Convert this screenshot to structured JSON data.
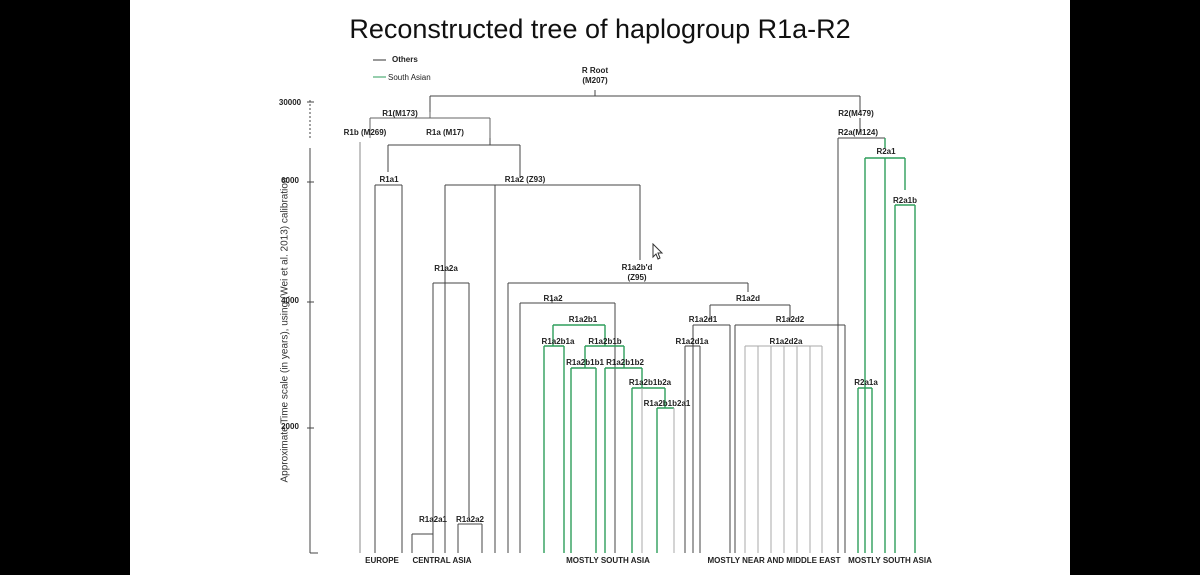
{
  "title": "Reconstructed tree of haplogroup R1a-R2",
  "legend": [
    {
      "label": "Others",
      "color": "#333333"
    },
    {
      "label": "South Asian",
      "color": "#2e9e5b"
    }
  ],
  "y_axis": {
    "label": "Approximate Time scale (in years), using (Wei et al. 2013) calibration",
    "ticks": [
      "30000",
      "6000",
      "4000",
      "2000"
    ]
  },
  "root": {
    "name": "R Root",
    "marker": "(M207)"
  },
  "nodes": {
    "r1": "R1(M173)",
    "r1b": "R1b (M269)",
    "r1a": "R1a (M17)",
    "r2": "R2(M479)",
    "r2a": "R2a(M124)",
    "r2a1": "R2a1",
    "r2a1b": "R2a1b",
    "r2a1a": "R2a1a",
    "r1a1": "R1a1",
    "r1a2": "R1a2 (Z93)",
    "r1a2a": "R1a2a",
    "r1a2a1": "R1a2a1",
    "r1a2a2": "R1a2a2",
    "r1a2bd": "R1a2b'd",
    "z95": "(Z95)",
    "r1a2_b": "R1a2",
    "r1a2d": "R1a2d",
    "r1a2b1": "R1a2b1",
    "r1a2b1a": "R1a2b1a",
    "r1a2b1b": "R1a2b1b",
    "r1a2b1b1": "R1a2b1b1",
    "r1a2b1b2": "R1a2b1b2",
    "r1a2b1b2a": "R1a2b1b2a",
    "r1a2b1b2a1": "R1a2b1b2a1",
    "r1a2d1": "R1a2d1",
    "r1a2d1a": "R1a2d1a",
    "r1a2d2": "R1a2d2",
    "r1a2d2a": "R1a2d2a"
  },
  "regions": {
    "europe": "EUROPE",
    "central_asia": "CENTRAL ASIA",
    "south_asia_1": "MOSTLY SOUTH ASIA",
    "near_middle_east": "MOSTLY NEAR AND MIDDLE EAST",
    "south_asia_2": "MOSTLY SOUTH ASIA"
  }
}
